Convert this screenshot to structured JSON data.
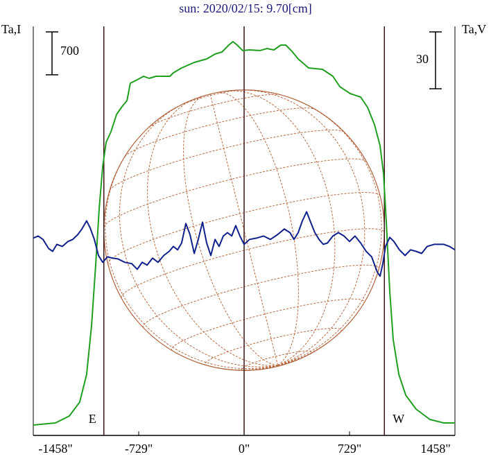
{
  "chart_data": {
    "type": "line",
    "title": "sun: 2020/02/15: 9.70[cm]",
    "ylabel": "Ta,I",
    "y2label": "Ta,V",
    "xlim": [
      -1458,
      1458
    ],
    "xticks": [
      {
        "value": -1458,
        "label": "-1458\""
      },
      {
        "value": -729,
        "label": "-729\""
      },
      {
        "value": 0,
        "label": "0\""
      },
      {
        "value": 729,
        "label": "729\""
      },
      {
        "value": 1458,
        "label": "1458\""
      }
    ],
    "ylim": [
      -170,
      6500
    ],
    "y2lim": [
      -102,
      114
    ],
    "scale_bars": [
      {
        "value": 700,
        "axis": "y"
      },
      {
        "value": 30,
        "axis": "y2"
      }
    ],
    "markers": [
      {
        "label": "E",
        "x": -970
      },
      {
        "label": "W",
        "x": 970
      }
    ],
    "series": [
      {
        "name": "Ta,I",
        "color": "#1f9e1f",
        "x": [
          -1458,
          -1305,
          -1209,
          -1137,
          -1089,
          -1055,
          -1026,
          -1002,
          -978,
          -954,
          -921,
          -882,
          -849,
          -810,
          -787,
          -739,
          -695,
          -657,
          -609,
          -513,
          -489,
          -432,
          -345,
          -259,
          -201,
          -153,
          -106,
          -77,
          -48,
          -10,
          38,
          110,
          158,
          206,
          254,
          288,
          326,
          374,
          446,
          542,
          614,
          662,
          734,
          806,
          854,
          902,
          940,
          964,
          983,
          1007,
          1031,
          1070,
          1118,
          1189,
          1285,
          1381,
          1458
        ],
        "values": [
          0,
          34,
          147,
          373,
          825,
          1616,
          2634,
          3538,
          4216,
          4612,
          4782,
          5064,
          5177,
          5290,
          5573,
          5630,
          5686,
          5652,
          5686,
          5686,
          5743,
          5822,
          5912,
          5969,
          6048,
          6082,
          6195,
          6251,
          6195,
          6105,
          6116,
          6105,
          6138,
          6116,
          6195,
          6195,
          6105,
          5969,
          5822,
          5799,
          5686,
          5516,
          5403,
          5347,
          5177,
          4895,
          4555,
          4103,
          3312,
          2181,
          1390,
          825,
          486,
          260,
          90,
          34,
          34
        ]
      },
      {
        "name": "Ta,V",
        "color": "#10208a",
        "axis": "y2",
        "x": [
          -1458,
          -1424,
          -1391,
          -1352,
          -1324,
          -1295,
          -1257,
          -1218,
          -1185,
          -1151,
          -1122,
          -1089,
          -1065,
          -1036,
          -1007,
          -978,
          -945,
          -911,
          -873,
          -825,
          -777,
          -739,
          -705,
          -671,
          -633,
          -595,
          -556,
          -518,
          -489,
          -460,
          -432,
          -403,
          -374,
          -345,
          -317,
          -288,
          -259,
          -230,
          -201,
          -173,
          -144,
          -115,
          -86,
          -58,
          -29,
          0,
          38,
          86,
          134,
          182,
          230,
          278,
          317,
          345,
          374,
          403,
          432,
          460,
          489,
          518,
          547,
          576,
          614,
          652,
          691,
          729,
          767,
          806,
          844,
          882,
          921,
          940,
          959,
          978,
          1007,
          1036,
          1074,
          1113,
          1151,
          1189,
          1228,
          1266,
          1314,
          1381,
          1420,
          1458
        ],
        "values": [
          2.2,
          3.3,
          1.5,
          -3.3,
          -4.8,
          -1.1,
          -2.2,
          0.4,
          1.5,
          4.0,
          7.0,
          11.3,
          7.7,
          1.5,
          -7.0,
          -10.6,
          -7.7,
          -8.4,
          -8.8,
          -10.6,
          -11.3,
          -14.3,
          -10.6,
          -12.1,
          -8.4,
          -10.6,
          -7.0,
          -4.8,
          -2.2,
          -4.0,
          -0.4,
          9.9,
          4.0,
          -5.9,
          1.5,
          10.6,
          -0.4,
          -7.0,
          1.5,
          -2.2,
          3.3,
          5.1,
          3.3,
          8.8,
          3.3,
          -1.1,
          1.5,
          2.2,
          3.3,
          1.5,
          4.0,
          7.0,
          5.1,
          1.5,
          5.1,
          11.3,
          16.1,
          10.6,
          5.1,
          1.5,
          -1.1,
          -0.4,
          3.3,
          5.1,
          3.3,
          0.4,
          3.3,
          -0.4,
          -4.8,
          -7.7,
          -15.7,
          -17.9,
          -11.3,
          -2.2,
          2.6,
          0.4,
          -4.0,
          -7.0,
          -4.0,
          -4.8,
          -5.9,
          -2.2,
          -1.1,
          -1.1,
          -2.2,
          -4.0
        ]
      }
    ]
  }
}
